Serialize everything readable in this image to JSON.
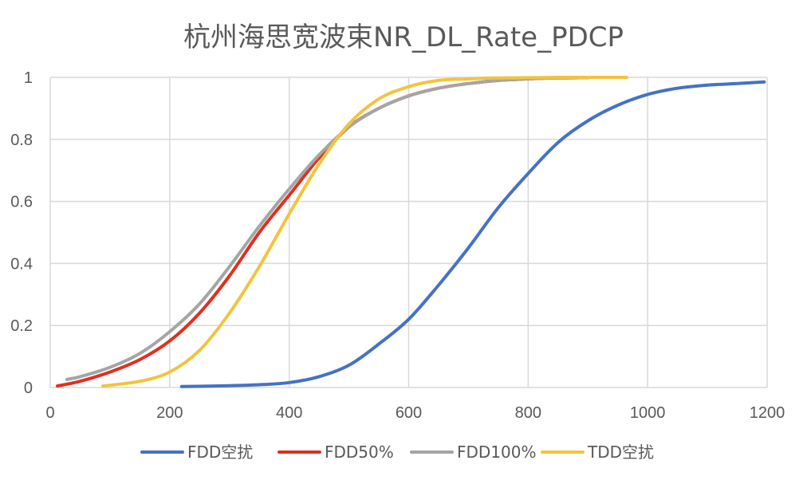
{
  "chart_data": {
    "type": "line",
    "title": "杭州海思宽波束NR_DL_Rate_PDCP",
    "xlim": [
      0,
      1200
    ],
    "ylim": [
      0,
      1
    ],
    "x_ticks": [
      "0",
      "200",
      "400",
      "600",
      "800",
      "1000",
      "1200"
    ],
    "y_ticks": [
      "0",
      "0.2",
      "0.4",
      "0.6",
      "0.8",
      "1"
    ],
    "grid": true,
    "legend_position": "bottom",
    "series": [
      {
        "name": "FDD空扰",
        "color": "#4472C4",
        "points": [
          [
            220,
            0.003
          ],
          [
            300,
            0.006
          ],
          [
            350,
            0.009
          ],
          [
            400,
            0.016
          ],
          [
            450,
            0.035
          ],
          [
            500,
            0.072
          ],
          [
            550,
            0.14
          ],
          [
            600,
            0.22
          ],
          [
            650,
            0.33
          ],
          [
            700,
            0.45
          ],
          [
            750,
            0.58
          ],
          [
            800,
            0.69
          ],
          [
            850,
            0.79
          ],
          [
            900,
            0.86
          ],
          [
            950,
            0.91
          ],
          [
            1000,
            0.945
          ],
          [
            1050,
            0.965
          ],
          [
            1100,
            0.975
          ],
          [
            1150,
            0.98
          ],
          [
            1195,
            0.985
          ]
        ]
      },
      {
        "name": "FDD50%",
        "color": "#E0301E",
        "points": [
          [
            12,
            0.005
          ],
          [
            50,
            0.02
          ],
          [
            100,
            0.05
          ],
          [
            150,
            0.09
          ],
          [
            200,
            0.15
          ],
          [
            250,
            0.24
          ],
          [
            300,
            0.36
          ],
          [
            350,
            0.5
          ],
          [
            400,
            0.62
          ],
          [
            450,
            0.74
          ],
          [
            500,
            0.84
          ],
          [
            550,
            0.9
          ],
          [
            600,
            0.94
          ],
          [
            650,
            0.965
          ],
          [
            700,
            0.98
          ],
          [
            750,
            0.99
          ],
          [
            800,
            0.995
          ],
          [
            850,
            0.998
          ],
          [
            900,
            0.999
          ]
        ]
      },
      {
        "name": "FDD100%",
        "color": "#A5A5A5",
        "points": [
          [
            28,
            0.026
          ],
          [
            50,
            0.035
          ],
          [
            100,
            0.065
          ],
          [
            150,
            0.11
          ],
          [
            200,
            0.18
          ],
          [
            250,
            0.27
          ],
          [
            300,
            0.39
          ],
          [
            350,
            0.52
          ],
          [
            400,
            0.64
          ],
          [
            450,
            0.75
          ],
          [
            500,
            0.84
          ],
          [
            550,
            0.9
          ],
          [
            600,
            0.94
          ],
          [
            650,
            0.965
          ],
          [
            700,
            0.98
          ],
          [
            750,
            0.99
          ],
          [
            800,
            0.995
          ],
          [
            850,
            0.998
          ],
          [
            900,
            0.999
          ]
        ]
      },
      {
        "name": "TDD空扰",
        "color": "#F2C43D",
        "points": [
          [
            88,
            0.005
          ],
          [
            150,
            0.02
          ],
          [
            200,
            0.05
          ],
          [
            250,
            0.12
          ],
          [
            300,
            0.24
          ],
          [
            350,
            0.39
          ],
          [
            400,
            0.56
          ],
          [
            450,
            0.72
          ],
          [
            500,
            0.85
          ],
          [
            550,
            0.93
          ],
          [
            600,
            0.97
          ],
          [
            650,
            0.99
          ],
          [
            700,
            0.995
          ],
          [
            750,
            0.998
          ],
          [
            800,
            0.999
          ],
          [
            850,
            1.0
          ],
          [
            900,
            1.0
          ],
          [
            965,
            1.0
          ]
        ]
      }
    ]
  }
}
